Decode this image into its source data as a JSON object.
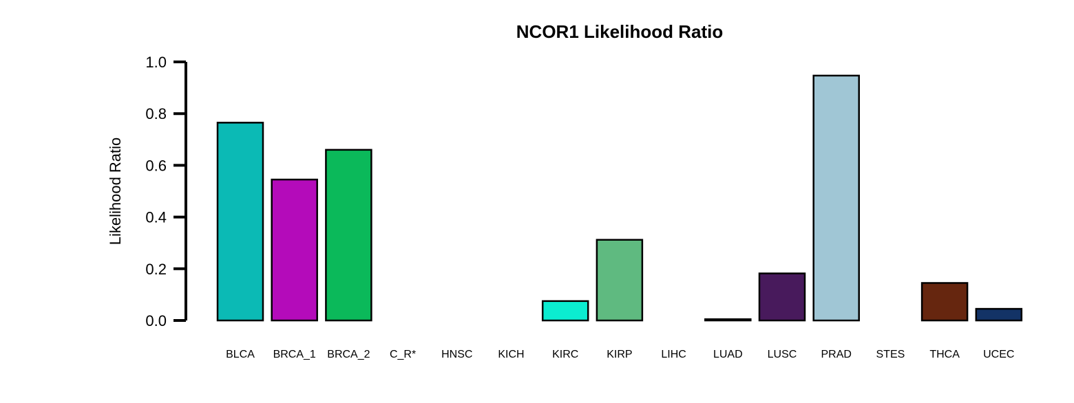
{
  "chart_data": {
    "type": "bar",
    "title": "NCOR1 Likelihood Ratio",
    "xlabel": "",
    "ylabel": "Likelihood Ratio",
    "ylim": [
      0,
      1.0
    ],
    "yticks": [
      "0.0",
      "0.2",
      "0.4",
      "0.6",
      "0.8",
      "1.0"
    ],
    "grid": false,
    "legend": "none",
    "categories": [
      "BLCA",
      "BRCA_1",
      "BRCA_2",
      "C_R*",
      "HNSC",
      "KICH",
      "KIRC",
      "KIRP",
      "LIHC",
      "LUAD",
      "LUSC",
      "PRAD",
      "STES",
      "THCA",
      "UCEC"
    ],
    "values": [
      0.765,
      0.545,
      0.66,
      0.0,
      0.0,
      0.0,
      0.075,
      0.312,
      0.0,
      0.005,
      0.182,
      0.947,
      0.0,
      0.145,
      0.045
    ],
    "colors": [
      "#0bbab5",
      "#b40bba",
      "#0bb95a",
      "#ffffff",
      "#ffffff",
      "#ffffff",
      "#0becd0",
      "#5fba80",
      "#ffffff",
      "#3e3e3e",
      "#481a5c",
      "#a0c6d5",
      "#ffffff",
      "#66260f",
      "#133366"
    ]
  }
}
